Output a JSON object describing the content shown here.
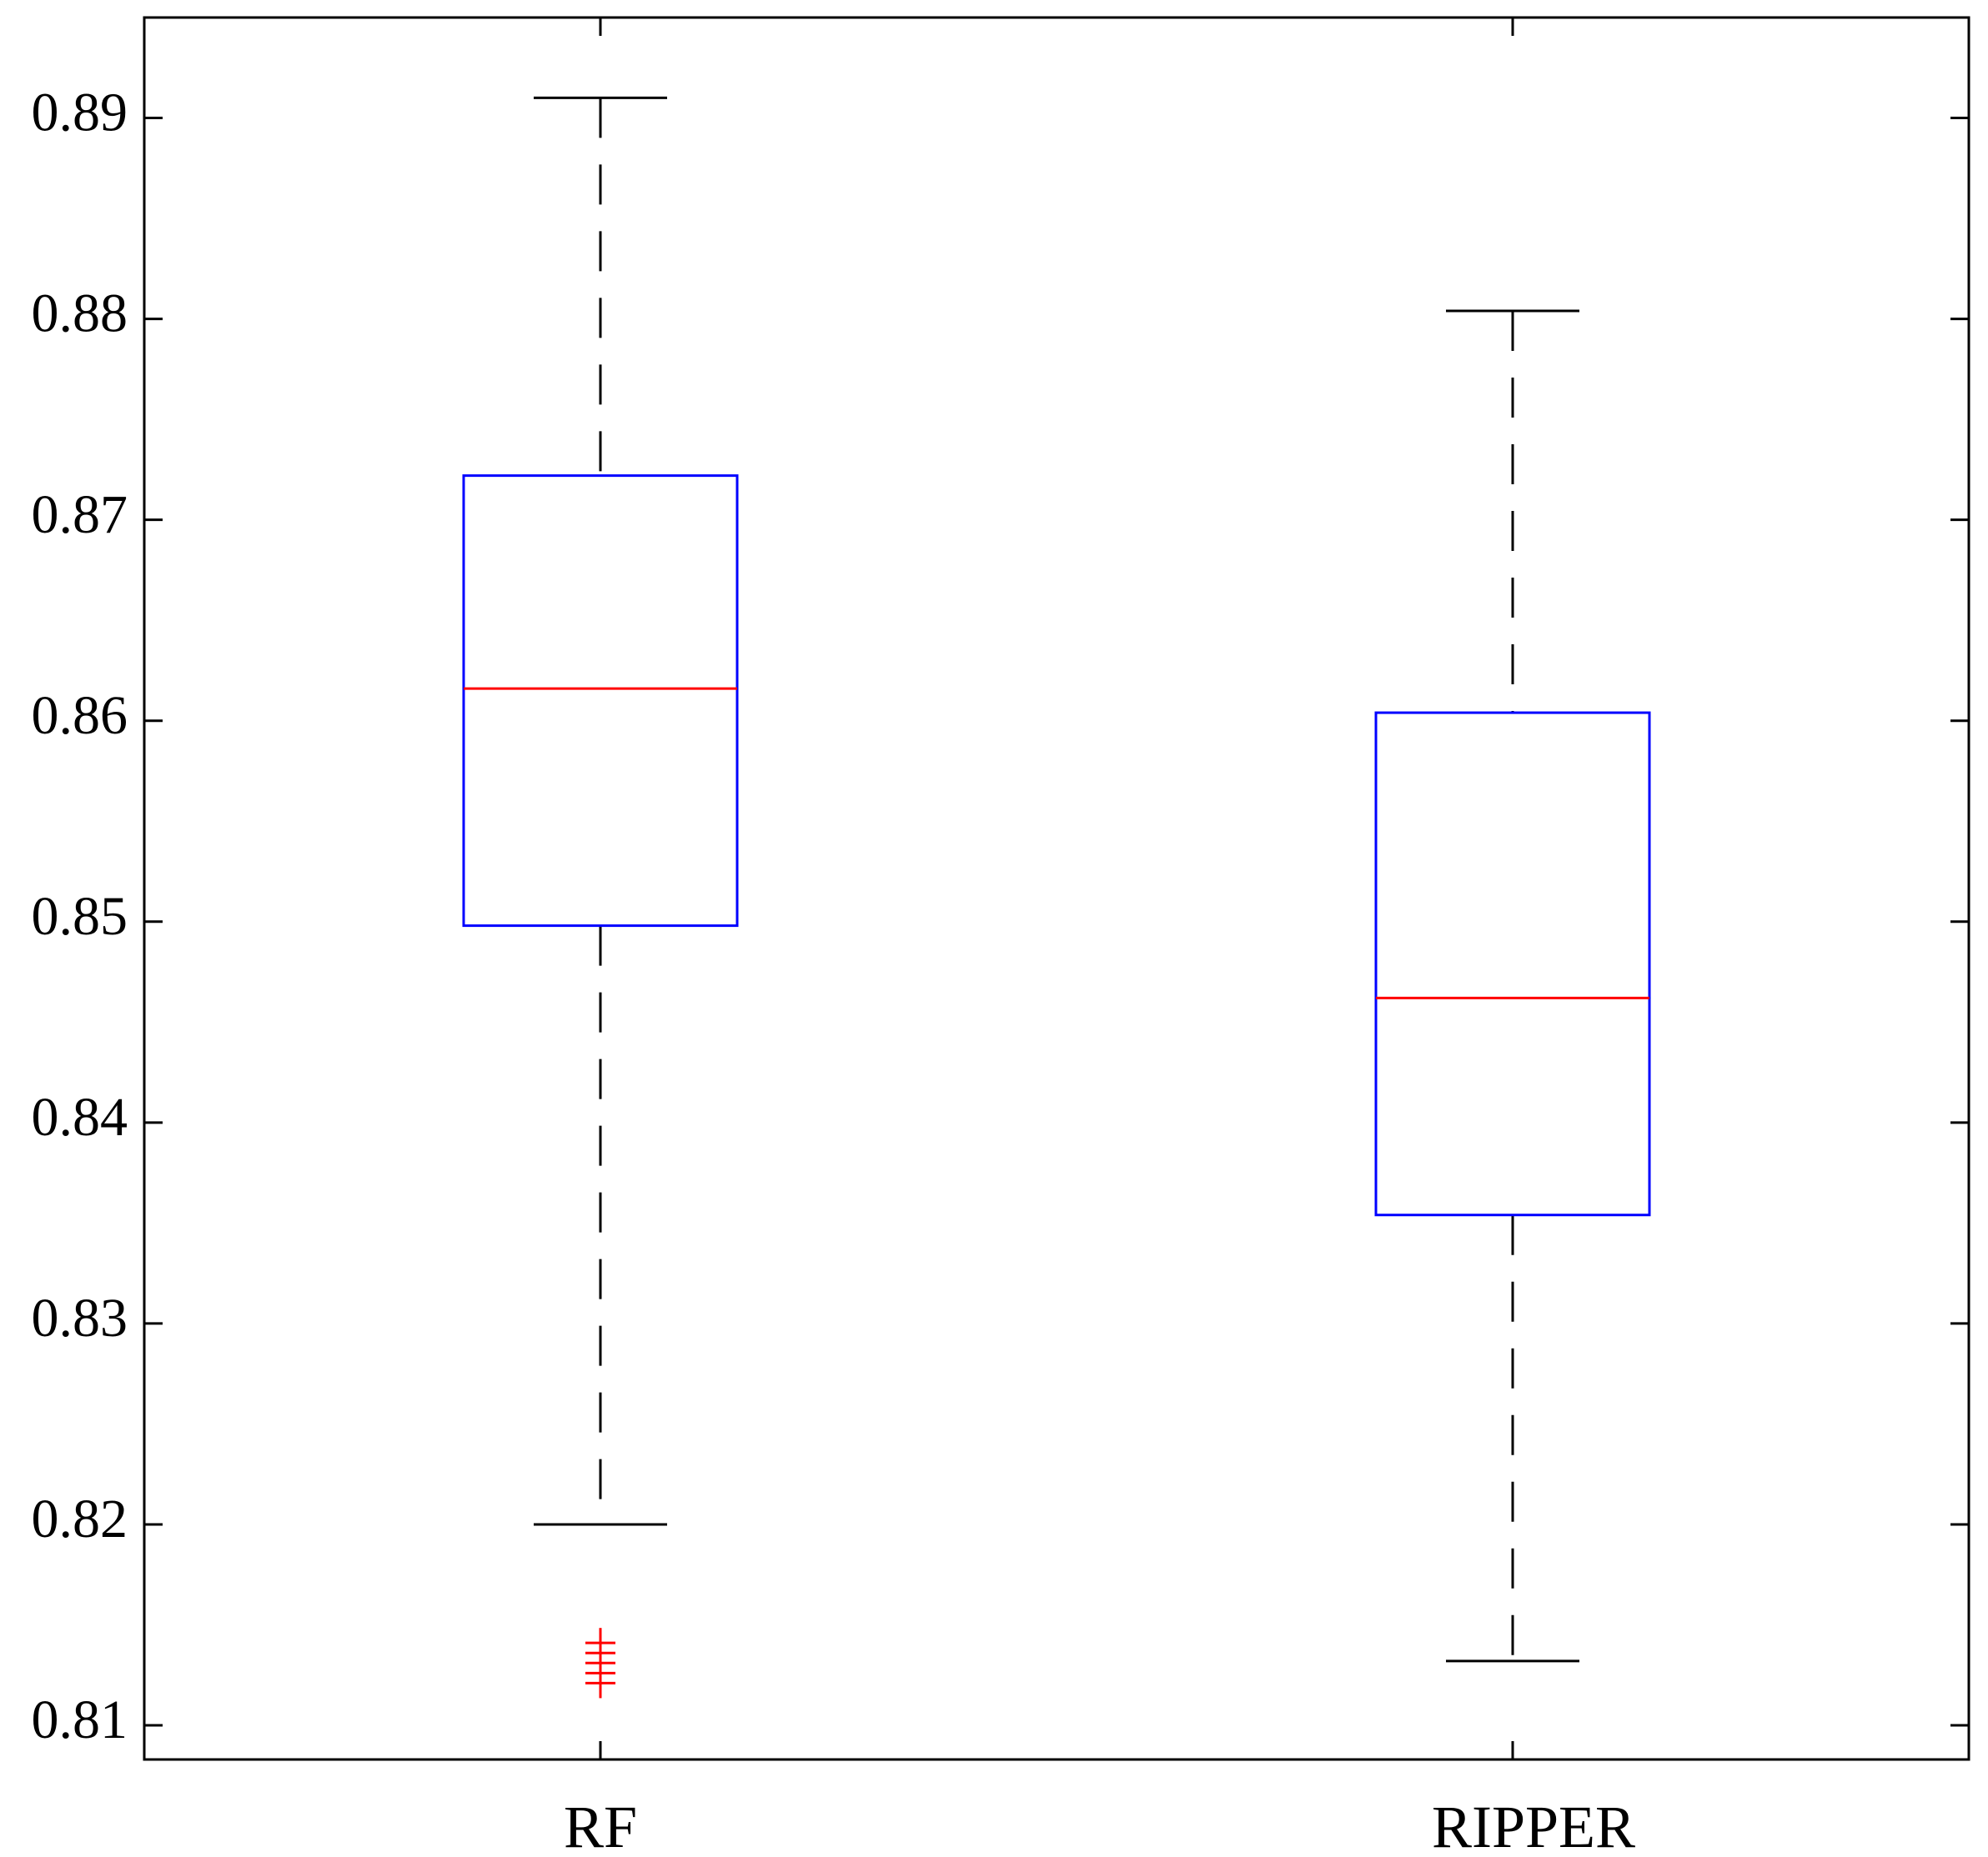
{
  "chart_data": {
    "type": "box",
    "title": "",
    "xlabel": "",
    "ylabel": "",
    "ylim": [
      0.8083,
      0.895
    ],
    "yticks": [
      0.81,
      0.82,
      0.83,
      0.84,
      0.85,
      0.86,
      0.87,
      0.88,
      0.89
    ],
    "ytick_labels": [
      "0.81",
      "0.82",
      "0.83",
      "0.84",
      "0.85",
      "0.86",
      "0.87",
      "0.88",
      "0.89"
    ],
    "categories": [
      "RF",
      "RIPPER"
    ],
    "boxes": [
      {
        "category": "RF",
        "whisker_low": 0.82,
        "q1": 0.8498,
        "median": 0.8616,
        "q3": 0.8722,
        "whisker_high": 0.891,
        "outliers": [
          0.8121,
          0.8126,
          0.8131,
          0.8136,
          0.8141
        ]
      },
      {
        "category": "RIPPER",
        "whisker_low": 0.8132,
        "q1": 0.8354,
        "median": 0.8462,
        "q3": 0.8604,
        "whisker_high": 0.8804,
        "outliers": []
      }
    ],
    "grid": false,
    "colors": {
      "box": "#0000ff",
      "median": "#ff0000",
      "whisker": "#000000",
      "outlier": "#ff0000",
      "axis": "#000000"
    }
  }
}
